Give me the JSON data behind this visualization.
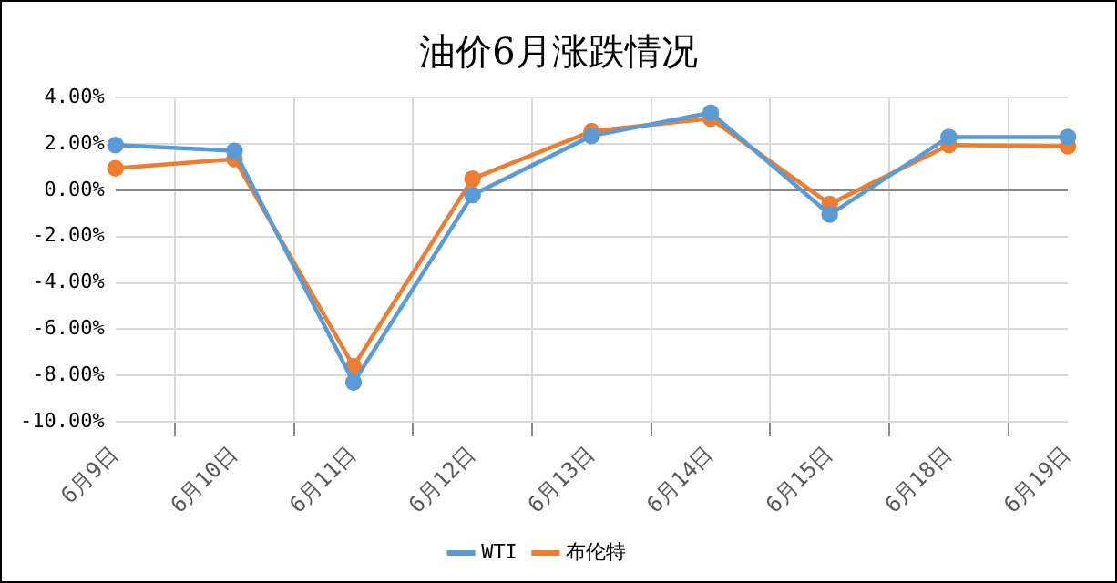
{
  "chart_data": {
    "type": "line",
    "title": "油价6月涨跌情况",
    "categories": [
      "6月9日",
      "6月10日",
      "6月11日",
      "6月12日",
      "6月13日",
      "6月14日",
      "6月15日",
      "6月18日",
      "6月19日"
    ],
    "series": [
      {
        "name": "WTI",
        "color": "#5b9bd5",
        "values": [
          1.95,
          1.7,
          -8.3,
          -0.2,
          2.35,
          3.35,
          -1.05,
          2.3,
          2.3
        ]
      },
      {
        "name": "布伦特",
        "color": "#ed7d31",
        "values": [
          0.95,
          1.35,
          -7.6,
          0.5,
          2.55,
          3.1,
          -0.6,
          1.95,
          1.9
        ]
      }
    ],
    "ylim": [
      -10,
      4
    ],
    "yticks": [
      {
        "value": -10,
        "label": "-10.00%"
      },
      {
        "value": -8,
        "label": "-8.00%"
      },
      {
        "value": -6,
        "label": "-6.00%"
      },
      {
        "value": -4,
        "label": "-4.00%"
      },
      {
        "value": -2,
        "label": "-2.00%"
      },
      {
        "value": 0,
        "label": "0.00%"
      },
      {
        "value": 2,
        "label": "2.00%"
      },
      {
        "value": 4,
        "label": "4.00%"
      }
    ],
    "grid": true,
    "legend": "bottom",
    "marker": "circle",
    "line_style": "solid"
  }
}
